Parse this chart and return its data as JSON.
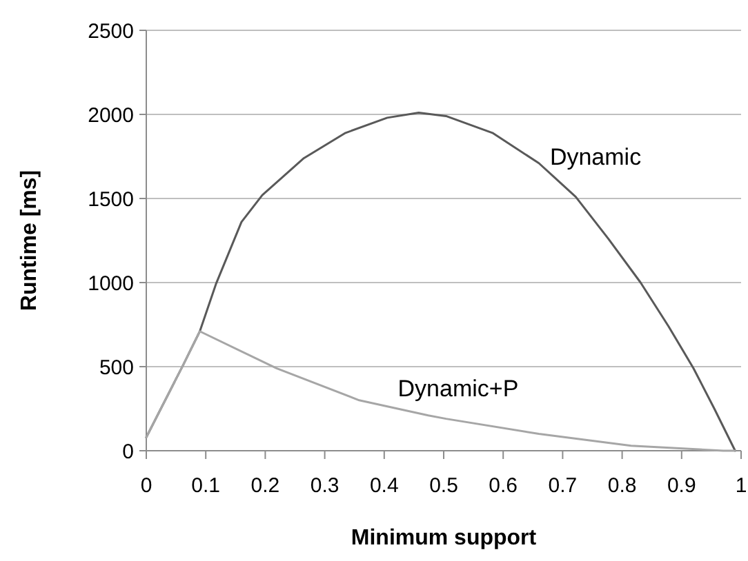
{
  "chart_data": {
    "type": "line",
    "xlabel": "Minimum support",
    "ylabel": "Runtime [ms]",
    "xlim": [
      0,
      1
    ],
    "xticks": [
      0,
      0.1,
      0.2,
      0.3,
      0.4,
      0.5,
      0.6,
      0.7,
      0.8,
      0.9,
      1
    ],
    "ylim": [
      0,
      2500
    ],
    "yticks": [
      0,
      500,
      1000,
      1500,
      2000,
      2500
    ],
    "grid": "y",
    "marker": "none",
    "line_style": "solid",
    "series": [
      {
        "name": "Dynamic",
        "color": "#595959",
        "x": [
          0,
          0.062,
          0.09,
          0.117,
          0.16,
          0.195,
          0.265,
          0.335,
          0.405,
          0.458,
          0.504,
          0.582,
          0.66,
          0.722,
          0.777,
          0.831,
          0.878,
          0.92,
          0.955,
          0.99
        ],
        "values": [
          80,
          510,
          710,
          990,
          1360,
          1520,
          1740,
          1890,
          1980,
          2010,
          1990,
          1890,
          1710,
          1510,
          1260,
          1000,
          740,
          490,
          250,
          0
        ]
      },
      {
        "name": "Dynamic+P",
        "color": "#a6a6a6",
        "x": [
          0,
          0.062,
          0.09,
          0.219,
          0.358,
          0.474,
          0.504,
          0.66,
          0.815,
          0.97,
          0.99
        ],
        "values": [
          80,
          510,
          710,
          490,
          300,
          210,
          190,
          100,
          30,
          0,
          0
        ]
      }
    ]
  }
}
